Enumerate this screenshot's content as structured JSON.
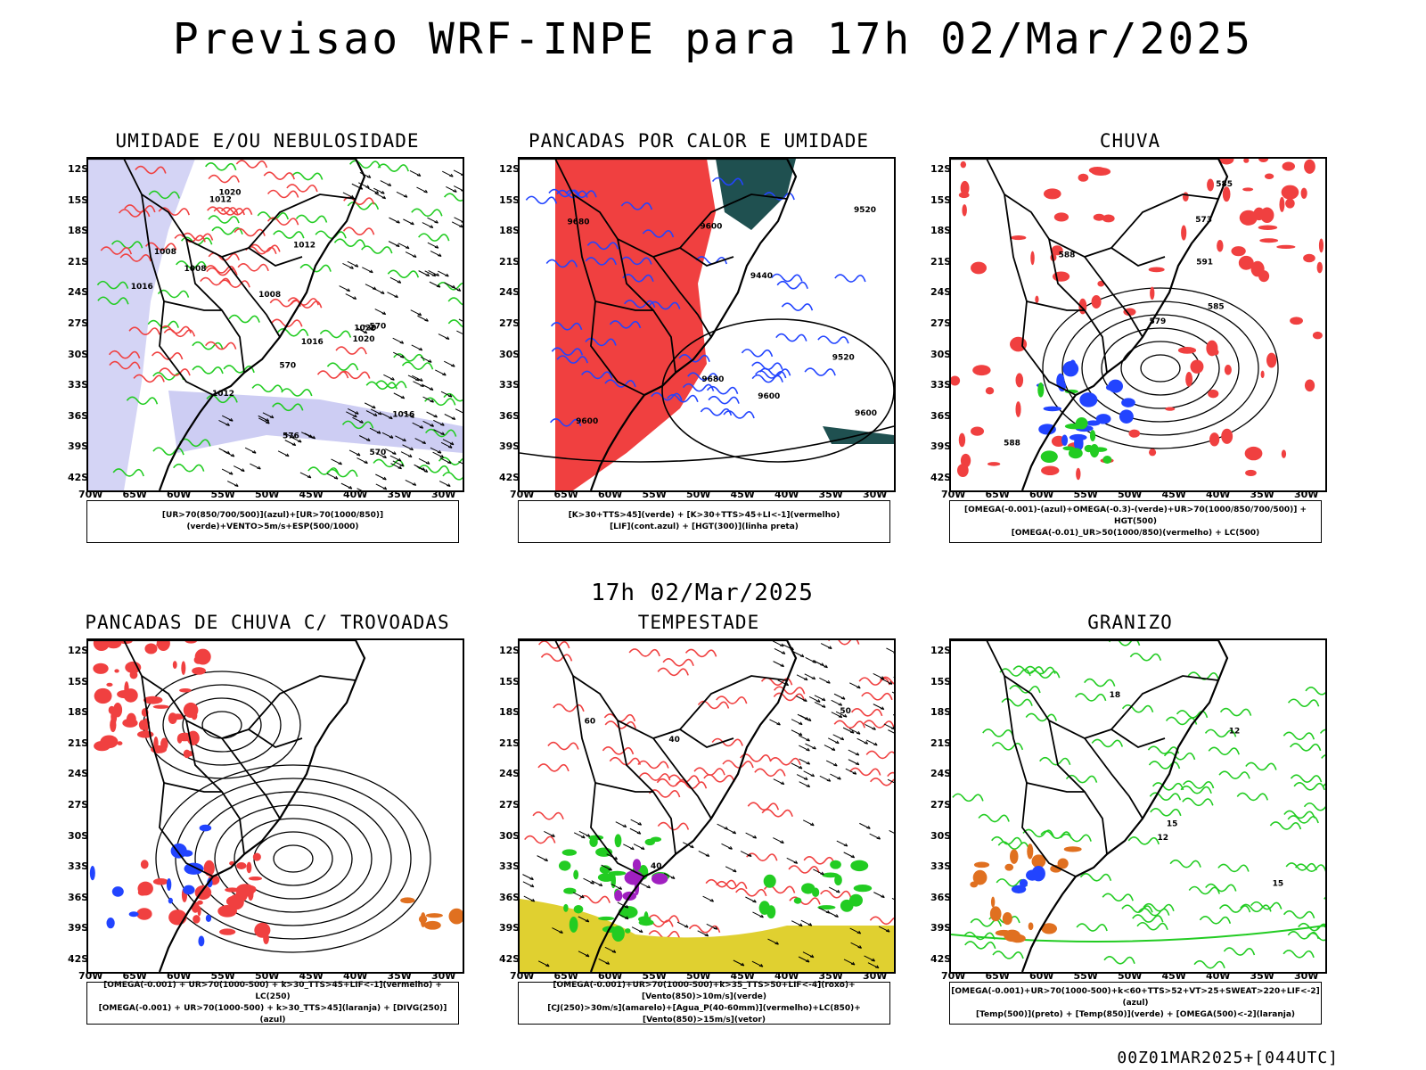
{
  "title": "Previsao WRF-INPE  para 17h 02/Mar/2025",
  "mid_label": "17h 02/Mar/2025",
  "footer": "00Z01MAR2025+[044UTC]",
  "lat_ticks": [
    "12S",
    "15S",
    "18S",
    "21S",
    "24S",
    "27S",
    "30S",
    "33S",
    "36S",
    "39S",
    "42S"
  ],
  "lon_ticks": [
    "70W",
    "65W",
    "60W",
    "55W",
    "50W",
    "45W",
    "40W",
    "35W",
    "30W"
  ],
  "colors": {
    "red": "#f04040",
    "green": "#22cc22",
    "blue": "#2244ff",
    "lavender": "#b8b8ee",
    "dark_teal": "#1f5050",
    "yellow": "#e0d030",
    "orange": "#e07020",
    "purple": "#a020c0"
  },
  "panels": [
    {
      "title": "UMIDADE E/OU NEBULOSIDADE",
      "legend": [
        "[UR>70(850/700/500)](azul)+[UR>70(1000/850)](verde)+VENTO>5m/s+ESP(500/1000)"
      ]
    },
    {
      "title": "PANCADAS POR CALOR E UMIDADE",
      "legend": [
        "[K>30+TTS>45](verde) + [K>30+TTS>45+LI<-1](vermelho)",
        "[LIF](cont.azul) + [HGT(300)](linha preta)"
      ]
    },
    {
      "title": "CHUVA",
      "legend": [
        "[OMEGA(-0.001)-(azul)+OMEGA(-0.3)-(verde)+UR>70(1000/850/700/500)] + HGT(500)",
        "[OMEGA(-0.01)_UR>50(1000/850)(vermelho) + LC(500)"
      ]
    },
    {
      "title": "PANCADAS DE CHUVA C/ TROVOADAS",
      "legend": [
        "[OMEGA(-0.001) + UR>70(1000-500) + k>30_TTS>45+LIF<-1](vermelho) + LC(250)",
        "[OMEGA(-0.001) + UR>70(1000-500) + k>30_TTS>45](laranja) + [DIVG(250)](azul)"
      ]
    },
    {
      "title": "TEMPESTADE",
      "legend": [
        "[OMEGA(-0.001)+UR>70(1000-500)+k>35_TTS>50+LIF<-4](roxo)+[Vento(850)>10m/s](verde)",
        "[CJ(250)>30m/s](amarelo)+[Agua_P(40-60mm)](vermelho)+LC(850)+[Vento(850)>15m/s](vetor)"
      ]
    },
    {
      "title": "GRANIZO",
      "legend": [
        "[OMEGA(-0.001)+UR>70(1000-500)+k<60+TTS>52+VT>25+SWEAT>220+LIF<-2](azul)",
        "[Temp(500)](preto) + [Temp(850)](verde) + [OMEGA(500)<-2](laranja)"
      ]
    }
  ],
  "chart_data": [
    {
      "type": "heatmap",
      "title": "UMIDADE E/OU NEBULOSIDADE",
      "xlim": [
        "70W",
        "28W"
      ],
      "ylim": [
        "42S",
        "10S"
      ],
      "contour_labels": [
        "1008",
        "1008",
        "1008",
        "1012",
        "1012",
        "1012",
        "1016",
        "1016",
        "1016",
        "1020",
        "1020",
        "1020",
        "570",
        "570",
        "570",
        "576"
      ]
    },
    {
      "type": "heatmap",
      "title": "PANCADAS POR CALOR E UMIDADE",
      "xlim": [
        "70W",
        "28W"
      ],
      "ylim": [
        "42S",
        "10S"
      ],
      "contour_labels": [
        "9600",
        "9600",
        "9600",
        "9520",
        "9520",
        "9440",
        "9680",
        "9680",
        "9600"
      ]
    },
    {
      "type": "heatmap",
      "title": "CHUVA",
      "xlim": [
        "70W",
        "28W"
      ],
      "ylim": [
        "42S",
        "10S"
      ],
      "contour_labels": [
        "585",
        "588",
        "591",
        "573",
        "579",
        "585",
        "588"
      ]
    },
    {
      "type": "heatmap",
      "title": "PANCADAS DE CHUVA C/ TROVOADAS",
      "xlim": [
        "70W",
        "28W"
      ],
      "ylim": [
        "42S",
        "10S"
      ],
      "contour_labels": []
    },
    {
      "type": "heatmap",
      "title": "TEMPESTADE",
      "xlim": [
        "70W",
        "28W"
      ],
      "ylim": [
        "42S",
        "10S"
      ],
      "contour_labels": [
        "40",
        "40",
        "50",
        "60"
      ]
    },
    {
      "type": "heatmap",
      "title": "GRANIZO",
      "xlim": [
        "70W",
        "28W"
      ],
      "ylim": [
        "42S",
        "10S"
      ],
      "contour_labels": [
        "15",
        "15",
        "12",
        "12",
        "18"
      ]
    }
  ]
}
